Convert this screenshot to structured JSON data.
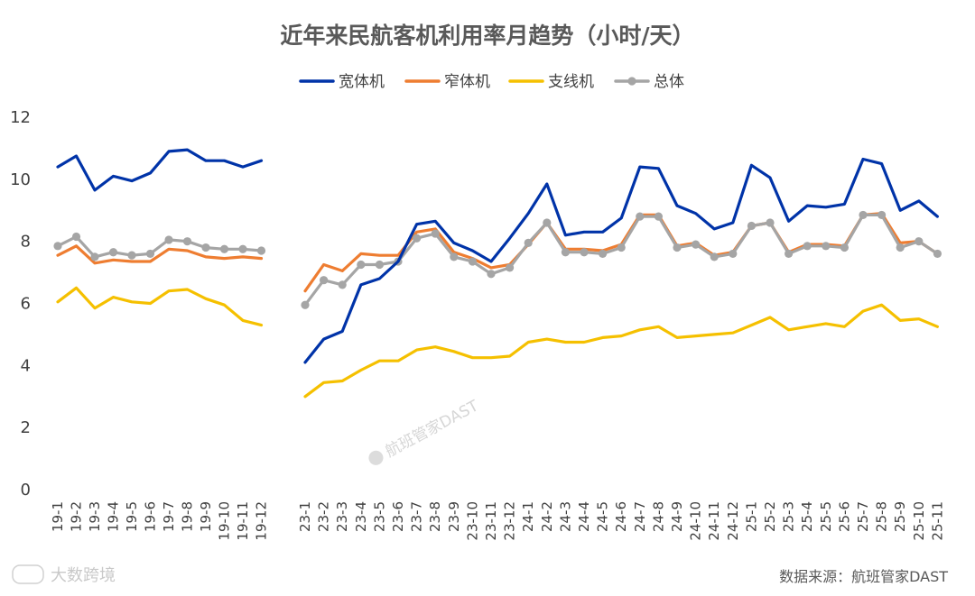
{
  "chart_data": {
    "type": "line",
    "title": "近年来民航客机利用率月趋势（小时/天）",
    "xlabel": "",
    "ylabel": "",
    "ylim": [
      0,
      12
    ],
    "yticks": [
      0,
      2,
      4,
      6,
      8,
      10,
      12
    ],
    "grid": false,
    "legend_position": "top",
    "segments": [
      {
        "categories": [
          "19-1",
          "19-2",
          "19-3",
          "19-4",
          "19-5",
          "19-6",
          "19-7",
          "19-8",
          "19-9",
          "19-10",
          "19-11",
          "19-12"
        ],
        "series": [
          {
            "name": "宽体机",
            "values": [
              10.4,
              10.75,
              9.65,
              10.1,
              9.95,
              10.2,
              10.9,
              10.95,
              10.6,
              10.6,
              10.4,
              10.6
            ]
          },
          {
            "name": "窄体机",
            "values": [
              7.55,
              7.85,
              7.3,
              7.4,
              7.35,
              7.35,
              7.75,
              7.7,
              7.5,
              7.45,
              7.5,
              7.45
            ]
          },
          {
            "name": "支线机",
            "values": [
              6.05,
              6.5,
              5.85,
              6.2,
              6.05,
              6.0,
              6.4,
              6.45,
              6.15,
              5.95,
              5.45,
              5.3
            ]
          },
          {
            "name": "总体",
            "values": [
              7.85,
              8.15,
              7.5,
              7.65,
              7.55,
              7.6,
              8.05,
              8.0,
              7.8,
              7.75,
              7.75,
              7.7
            ]
          }
        ]
      },
      {
        "categories": [
          "23-1",
          "23-2",
          "23-3",
          "23-4",
          "23-5",
          "23-6",
          "23-7",
          "23-8",
          "23-9",
          "23-10",
          "23-11",
          "23-12",
          "24-1",
          "24-2",
          "24-3",
          "24-4",
          "24-5",
          "24-6",
          "24-7",
          "24-8",
          "24-9",
          "24-10",
          "24-11",
          "24-12",
          "25-1",
          "25-2",
          "25-3",
          "25-4",
          "25-5",
          "25-6",
          "25-7",
          "25-8",
          "25-9",
          "25-10",
          "25-11"
        ],
        "series": [
          {
            "name": "宽体机",
            "values": [
              4.1,
              4.85,
              5.1,
              6.6,
              6.8,
              7.35,
              8.55,
              8.65,
              7.95,
              7.7,
              7.35,
              8.1,
              8.9,
              9.85,
              8.2,
              8.3,
              8.3,
              8.75,
              10.4,
              10.35,
              9.15,
              8.9,
              8.4,
              8.6,
              10.45,
              10.05,
              8.65,
              9.15,
              9.1,
              9.2,
              10.65,
              10.5,
              9.0,
              9.3,
              8.8
            ]
          },
          {
            "name": "窄体机",
            "values": [
              6.4,
              7.25,
              7.05,
              7.6,
              7.55,
              7.55,
              8.3,
              8.4,
              7.65,
              7.45,
              7.15,
              7.25,
              7.9,
              8.6,
              7.75,
              7.75,
              7.7,
              7.9,
              8.85,
              8.85,
              7.85,
              7.95,
              7.55,
              7.65,
              8.5,
              8.6,
              7.65,
              7.9,
              7.9,
              7.85,
              8.85,
              8.9,
              7.95,
              8.0,
              7.6
            ]
          },
          {
            "name": "支线机",
            "values": [
              3.0,
              3.45,
              3.5,
              3.85,
              4.15,
              4.15,
              4.5,
              4.6,
              4.45,
              4.25,
              4.25,
              4.3,
              4.75,
              4.85,
              4.75,
              4.75,
              4.9,
              4.95,
              5.15,
              5.25,
              4.9,
              4.95,
              5.0,
              5.05,
              5.3,
              5.55,
              5.15,
              5.25,
              5.35,
              5.25,
              5.75,
              5.95,
              5.45,
              5.5,
              5.25
            ]
          },
          {
            "name": "总体",
            "values": [
              5.95,
              6.75,
              6.6,
              7.25,
              7.25,
              7.35,
              8.1,
              8.25,
              7.5,
              7.35,
              6.95,
              7.15,
              7.95,
              8.6,
              7.65,
              7.65,
              7.6,
              7.8,
              8.8,
              8.8,
              7.8,
              7.9,
              7.5,
              7.6,
              8.5,
              8.6,
              7.6,
              7.85,
              7.85,
              7.8,
              8.85,
              8.85,
              7.8,
              8.0,
              7.6
            ]
          }
        ]
      }
    ],
    "colors": {
      "宽体机": "#0033a8",
      "窄体机": "#ee7d31",
      "支线机": "#f5c000",
      "总体": "#a5a5a5"
    },
    "marker_series": "总体"
  },
  "source_text": "数据来源：航班管家DAST",
  "watermark_corner": "大数跨境",
  "watermark_center": "航班管家DAST"
}
